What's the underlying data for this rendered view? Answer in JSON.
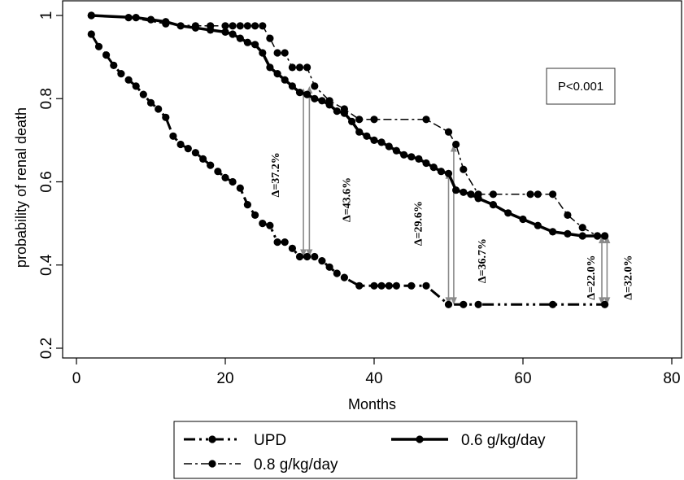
{
  "chart_data": {
    "type": "line",
    "xlabel": "Months",
    "ylabel": "probability of renal death",
    "xlim": [
      0,
      80
    ],
    "ylim": [
      0.2,
      1.0
    ],
    "xticks": [
      0,
      20,
      40,
      60,
      80
    ],
    "yticks": [
      0.2,
      0.4,
      0.6,
      0.8,
      1.0
    ],
    "ytick_labels": [
      "0.2",
      "0.4",
      "0.6",
      "0.8",
      "1"
    ],
    "grid": false,
    "legend_position": "bottom",
    "annotation_box": "P<0.001",
    "series": [
      {
        "name": "UPD",
        "style": "dash-dot-dot",
        "line_width": 3,
        "x": [
          2,
          3,
          4,
          5,
          6,
          7,
          8,
          9,
          10,
          11,
          12,
          13,
          14,
          15,
          16,
          17,
          18,
          19,
          20,
          21,
          22,
          23,
          24,
          25,
          26,
          27,
          28,
          29,
          30,
          31,
          32,
          33,
          34,
          35,
          36,
          38,
          40,
          41,
          42,
          43,
          45,
          47,
          50,
          52,
          54,
          64,
          71
        ],
        "y": [
          0.955,
          0.925,
          0.905,
          0.88,
          0.86,
          0.845,
          0.83,
          0.81,
          0.79,
          0.775,
          0.755,
          0.71,
          0.69,
          0.68,
          0.67,
          0.655,
          0.64,
          0.625,
          0.61,
          0.6,
          0.585,
          0.545,
          0.52,
          0.5,
          0.495,
          0.455,
          0.455,
          0.44,
          0.42,
          0.42,
          0.42,
          0.41,
          0.395,
          0.38,
          0.37,
          0.35,
          0.35,
          0.35,
          0.35,
          0.35,
          0.35,
          0.35,
          0.305,
          0.305,
          0.305,
          0.305,
          0.305
        ]
      },
      {
        "name": "0.6 g/kg/day",
        "style": "solid",
        "line_width": 3.5,
        "x": [
          2,
          8,
          10,
          12,
          14,
          16,
          18,
          20,
          21,
          22,
          23,
          24,
          25,
          26,
          27,
          28,
          29,
          30,
          31,
          32,
          33,
          34,
          35,
          36,
          37,
          38,
          39,
          40,
          41,
          42,
          43,
          44,
          45,
          46,
          47,
          48,
          49,
          50,
          51,
          52,
          53,
          54,
          56,
          58,
          60,
          62,
          64,
          66,
          68,
          70,
          71
        ],
        "y": [
          1.0,
          0.995,
          0.99,
          0.985,
          0.975,
          0.97,
          0.965,
          0.96,
          0.955,
          0.945,
          0.935,
          0.93,
          0.91,
          0.875,
          0.86,
          0.845,
          0.83,
          0.815,
          0.81,
          0.8,
          0.795,
          0.785,
          0.77,
          0.765,
          0.745,
          0.72,
          0.71,
          0.7,
          0.695,
          0.685,
          0.675,
          0.665,
          0.66,
          0.655,
          0.645,
          0.635,
          0.625,
          0.62,
          0.58,
          0.575,
          0.57,
          0.56,
          0.545,
          0.525,
          0.51,
          0.495,
          0.48,
          0.475,
          0.47,
          0.47,
          0.47
        ]
      },
      {
        "name": "0.8 g/kg/day",
        "style": "dash-dot",
        "line_width": 1.5,
        "x": [
          2,
          7,
          12,
          16,
          18,
          20,
          21,
          22,
          23,
          24,
          25,
          26,
          27,
          28,
          29,
          30,
          31,
          32,
          34,
          36,
          38,
          40,
          47,
          50,
          51,
          52,
          54,
          56,
          61,
          62,
          64,
          66,
          68,
          70,
          71
        ],
        "y": [
          1.0,
          0.995,
          0.98,
          0.975,
          0.975,
          0.975,
          0.975,
          0.975,
          0.975,
          0.975,
          0.975,
          0.945,
          0.91,
          0.91,
          0.875,
          0.875,
          0.875,
          0.83,
          0.795,
          0.775,
          0.75,
          0.75,
          0.75,
          0.72,
          0.69,
          0.63,
          0.57,
          0.57,
          0.57,
          0.57,
          0.57,
          0.52,
          0.49,
          0.47,
          0.47
        ]
      }
    ],
    "annotations": [
      {
        "text": "Δ=37.2%",
        "x": 30.5,
        "from": 0.42,
        "to": 0.825,
        "text_x": 27.2,
        "text_y": 0.617
      },
      {
        "text": "Δ=43.6%",
        "x": 31.3,
        "from": 0.42,
        "to": 0.83,
        "text_x": 36.8,
        "text_y": 0.557
      },
      {
        "text": "Δ=29.6%",
        "x": 50.0,
        "from": 0.305,
        "to": 0.625,
        "text_x": 46.4,
        "text_y": 0.5
      },
      {
        "text": "Δ=36.7%",
        "x": 50.7,
        "from": 0.305,
        "to": 0.69,
        "text_x": 55.0,
        "text_y": 0.41
      },
      {
        "text": "Δ=22.0%",
        "x": 70.6,
        "from": 0.305,
        "to": 0.47,
        "text_x": 69.6,
        "text_y": 0.37
      },
      {
        "text": "Δ=32.0%",
        "x": 71.3,
        "from": 0.305,
        "to": 0.47,
        "text_x": 74.6,
        "text_y": 0.37
      }
    ]
  }
}
